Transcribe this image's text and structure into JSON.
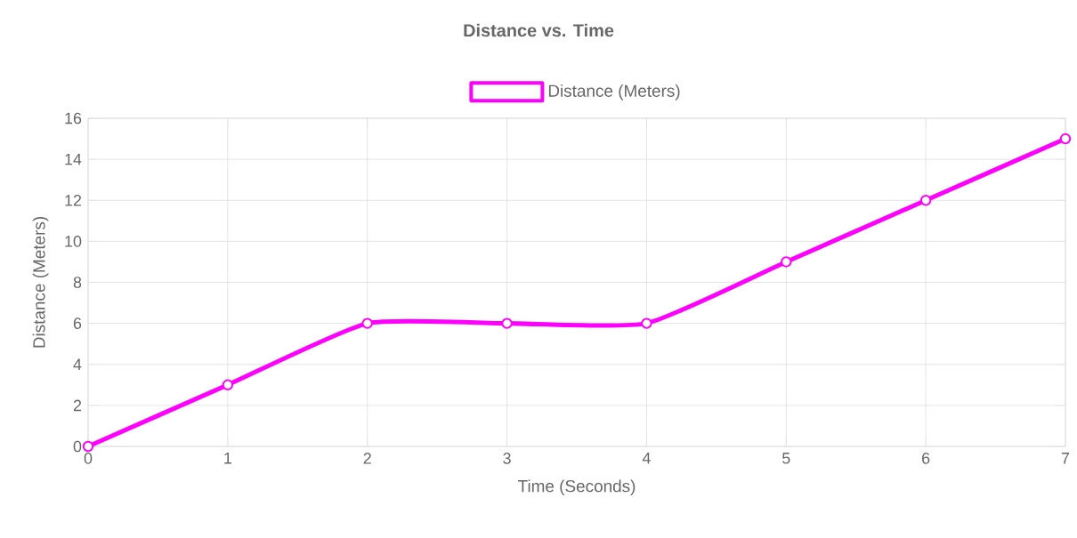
{
  "chart_data": {
    "type": "line",
    "title": "Distance vs. Time",
    "xlabel": "Time (Seconds)",
    "ylabel": "Distance (Meters)",
    "x": [
      0,
      1,
      2,
      3,
      4,
      5,
      6,
      7
    ],
    "series": [
      {
        "name": "Distance (Meters)",
        "color": "#ff00ff",
        "values": [
          0,
          3,
          6,
          6,
          6,
          9,
          12,
          15
        ]
      }
    ],
    "xlim": [
      0,
      7
    ],
    "xticks": [
      0,
      1,
      2,
      3,
      4,
      5,
      6,
      7
    ],
    "ylim": [
      0,
      16
    ],
    "yticks": [
      0,
      2,
      4,
      6,
      8,
      10,
      12,
      14,
      16
    ],
    "grid": true,
    "legend": "top",
    "marker": "circle",
    "line_style": "solid"
  }
}
